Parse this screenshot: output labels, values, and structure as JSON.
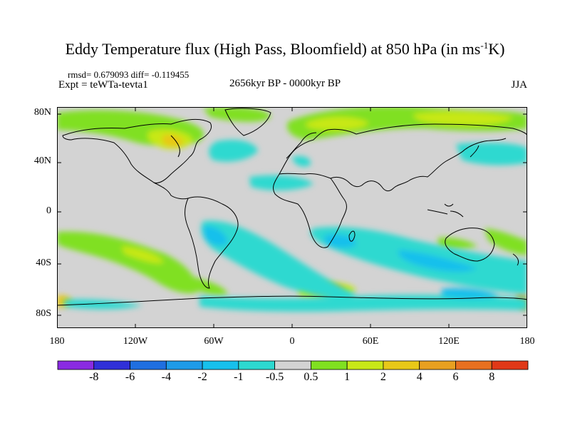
{
  "title": {
    "main": "Eddy Temperature flux (High Pass, Bloomfield) at 850 hPa (in ms",
    "sup": "-1",
    "unit_end": "K)"
  },
  "stats": "rmsd= 0.679093 diff= -0.119455",
  "expt": "Expt = teWTa-tevta1",
  "period": "2656kyr BP - 0000kyr BP",
  "season": "JJA",
  "y_ticks": [
    "80N",
    "40N",
    "0",
    "40S",
    "80S"
  ],
  "x_ticks": [
    "180",
    "120W",
    "60W",
    "0",
    "60E",
    "120E",
    "180"
  ],
  "colorbar": {
    "labels": [
      "-8",
      "-6",
      "-4",
      "-2",
      "-1",
      "-0.5",
      "0.5",
      "1",
      "2",
      "4",
      "6",
      "8"
    ],
    "colors": [
      "#8a2be2",
      "#3030d8",
      "#1f6fe0",
      "#1e9be8",
      "#17c0ec",
      "#2dd9d0",
      "#d3d3d3",
      "#80e020",
      "#c8e818",
      "#e8c818",
      "#e8a020",
      "#e87020",
      "#e03818"
    ]
  },
  "map": {
    "background_color": "#d3d3d3",
    "coastline_color": "#000000"
  }
}
